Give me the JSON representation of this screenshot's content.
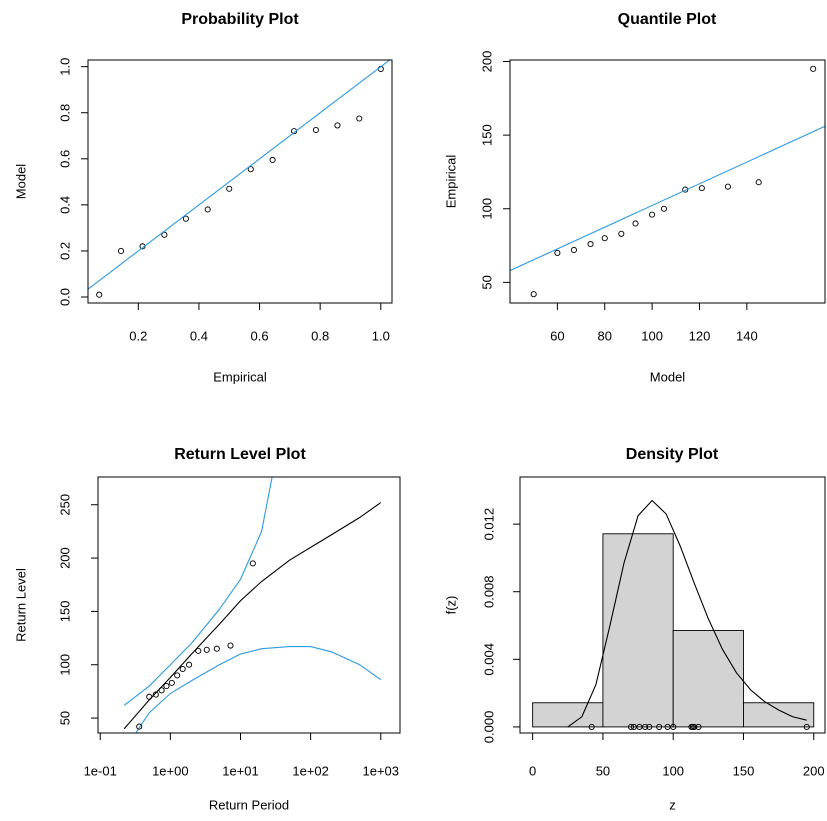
{
  "chart_data": [
    {
      "type": "scatter",
      "title": "Probability Plot",
      "xlabel": "Empirical",
      "ylabel": "Model",
      "xlim": [
        0.034,
        1.037
      ],
      "ylim": [
        -0.026,
        1.029
      ],
      "xticks": [
        0.2,
        0.4,
        0.6,
        0.8,
        {
          "value": 1,
          "label": "1.0"
        }
      ],
      "yticks": [
        {
          "value": 0,
          "label": "0.0"
        },
        0.2,
        0.4,
        0.6,
        0.8,
        {
          "value": 1,
          "label": "1.0"
        }
      ],
      "series": [
        {
          "style": "points",
          "color": "#000000",
          "x": [
            0.071,
            0.143,
            0.214,
            0.286,
            0.357,
            0.429,
            0.5,
            0.571,
            0.643,
            0.714,
            0.786,
            0.857,
            0.929,
            1.0
          ],
          "values": [
            0.01,
            0.2,
            0.22,
            0.27,
            0.34,
            0.38,
            0.47,
            0.555,
            0.595,
            0.72,
            0.725,
            0.745,
            0.775,
            0.99
          ]
        },
        {
          "style": "line",
          "color": "#2c9ae0",
          "x": [
            0.034,
            1.037
          ],
          "values": [
            0.034,
            1.037
          ]
        }
      ]
    },
    {
      "type": "scatter",
      "title": "Quantile Plot",
      "xlabel": "Model",
      "ylabel": "Empirical",
      "xlim": [
        40,
        173
      ],
      "ylim": [
        36,
        201
      ],
      "xticks": [
        60,
        80,
        100,
        120,
        140
      ],
      "yticks": [
        50,
        100,
        150,
        200
      ],
      "series": [
        {
          "style": "points",
          "color": "#000000",
          "x": [
            50,
            60,
            67,
            74,
            80,
            87,
            93,
            100,
            105,
            114,
            121,
            132,
            145,
            168
          ],
          "values": [
            42,
            70,
            72,
            76,
            80,
            83,
            90,
            96,
            100,
            113,
            114,
            115,
            118,
            195
          ]
        },
        {
          "style": "line",
          "color": "#2c9ae0",
          "x": [
            40,
            173
          ],
          "values": [
            58,
            156
          ]
        }
      ]
    },
    {
      "type": "line",
      "title": "Return Level Plot",
      "xlabel": "Return Period",
      "ylabel": "Return Level",
      "xlog": true,
      "xlim": [
        0.093,
        1880
      ],
      "ylim": [
        36,
        276
      ],
      "xticks": [
        {
          "value": 0.1,
          "label": "1e-01"
        },
        {
          "value": 1,
          "label": "1e+00"
        },
        {
          "value": 10,
          "label": "1e+01"
        },
        {
          "value": 100,
          "label": "1e+02"
        },
        {
          "value": 1000,
          "label": "1e+03"
        }
      ],
      "yticks": [
        50,
        100,
        150,
        200,
        250
      ],
      "series": [
        {
          "style": "line",
          "color": "#000000",
          "x": [
            0.22,
            0.5,
            1,
            2,
            5,
            10,
            20,
            50,
            100,
            200,
            500,
            1000
          ],
          "values": [
            40,
            67,
            88,
            110,
            138,
            160,
            178,
            198,
            210,
            222,
            238,
            252
          ]
        },
        {
          "style": "line",
          "color": "#2c9ae0",
          "x": [
            0.22,
            0.5,
            1,
            2,
            5,
            10,
            20,
            30
          ],
          "values": [
            62,
            80,
            100,
            120,
            152,
            180,
            225,
            285
          ]
        },
        {
          "style": "line",
          "color": "#2c9ae0",
          "x": [
            0.3,
            0.5,
            1,
            2,
            5,
            10,
            20,
            50,
            100,
            200,
            500,
            1000
          ],
          "values": [
            33,
            55,
            73,
            85,
            100,
            110,
            115,
            117,
            117,
            112,
            100,
            86
          ]
        },
        {
          "style": "points",
          "color": "#000000",
          "x": [
            0.36,
            0.5,
            0.62,
            0.75,
            0.88,
            1.05,
            1.25,
            1.5,
            1.85,
            2.5,
            3.3,
            4.6,
            7.2,
            15
          ],
          "values": [
            42,
            70,
            72,
            76,
            80,
            83,
            90,
            96,
            100,
            113,
            114,
            115,
            118,
            195
          ]
        }
      ]
    },
    {
      "type": "histogram",
      "title": "Density Plot",
      "xlabel": "z",
      "ylabel": "f(z)",
      "xlim": [
        -9,
        208
      ],
      "ylim": [
        -0.00036,
        0.01479
      ],
      "xticks": [
        0,
        50,
        100,
        150,
        200
      ],
      "yticks": [
        {
          "value": 0,
          "label": "0.000"
        },
        {
          "value": 0.004,
          "label": "0.004"
        },
        {
          "value": 0.008,
          "label": "0.008"
        },
        {
          "value": 0.012,
          "label": "0.012"
        }
      ],
      "bins": [
        0,
        50,
        100,
        150,
        200
      ],
      "values": [
        0.00143,
        0.01143,
        0.00571,
        0.00143
      ],
      "color": "#d3d3d3",
      "series": [
        {
          "style": "line",
          "color": "#000000",
          "x": [
            25,
            35,
            45,
            55,
            65,
            75,
            85,
            95,
            105,
            115,
            125,
            135,
            145,
            155,
            165,
            175,
            185,
            195
          ],
          "values": [
            0,
            0.0006,
            0.0025,
            0.006,
            0.0097,
            0.0125,
            0.0134,
            0.0126,
            0.0107,
            0.0085,
            0.0064,
            0.0046,
            0.0032,
            0.0022,
            0.0015,
            0.001,
            0.0006,
            0.0004
          ]
        },
        {
          "style": "points",
          "color": "#000000",
          "x": [
            42,
            70,
            72,
            76,
            80,
            83,
            90,
            96,
            100,
            113,
            114,
            115,
            118,
            195
          ],
          "values": [
            0,
            0,
            0,
            0,
            0,
            0,
            0,
            0,
            0,
            0,
            0,
            0,
            0,
            0
          ]
        }
      ]
    }
  ]
}
